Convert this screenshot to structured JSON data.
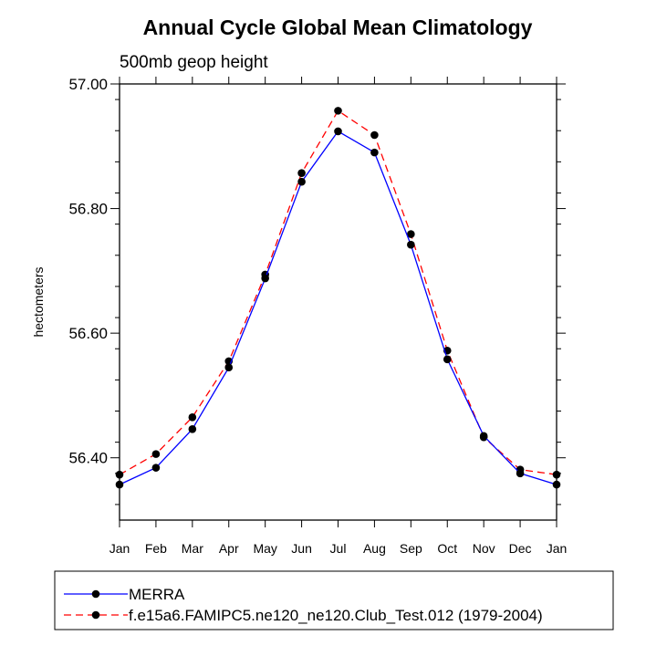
{
  "chart_data": {
    "type": "line",
    "title": "Annual Cycle Global Mean Climatology",
    "subtitle": "500mb geop height",
    "xlabel": "",
    "ylabel": "hectometers",
    "categories": [
      "Jan",
      "Feb",
      "Mar",
      "Apr",
      "May",
      "Jun",
      "Jul",
      "Aug",
      "Sep",
      "Oct",
      "Nov",
      "Dec",
      "Jan"
    ],
    "ylim": [
      56.3,
      57.0
    ],
    "yticks": [
      56.4,
      56.6,
      56.8,
      57.0
    ],
    "ytick_labels": [
      "56.40",
      "56.60",
      "56.80",
      "57.00"
    ],
    "series": [
      {
        "name": "MERRA",
        "color": "#0000ff",
        "line_style": "solid",
        "marker": "filled-circle",
        "values": [
          56.357,
          56.384,
          56.446,
          56.545,
          56.688,
          56.843,
          56.924,
          56.89,
          56.742,
          56.558,
          56.435,
          56.375,
          56.357
        ]
      },
      {
        "name": "f.e15a6.FAMIPC5.ne120_ne120.Club_Test.012 (1979-2004)",
        "color": "#ff0000",
        "line_style": "dashed",
        "marker": "filled-circle",
        "values": [
          56.373,
          56.406,
          56.465,
          56.555,
          56.694,
          56.857,
          56.957,
          56.918,
          56.759,
          56.572,
          56.433,
          56.381,
          56.373
        ]
      }
    ],
    "grid": false,
    "legend_position": "bottom"
  }
}
